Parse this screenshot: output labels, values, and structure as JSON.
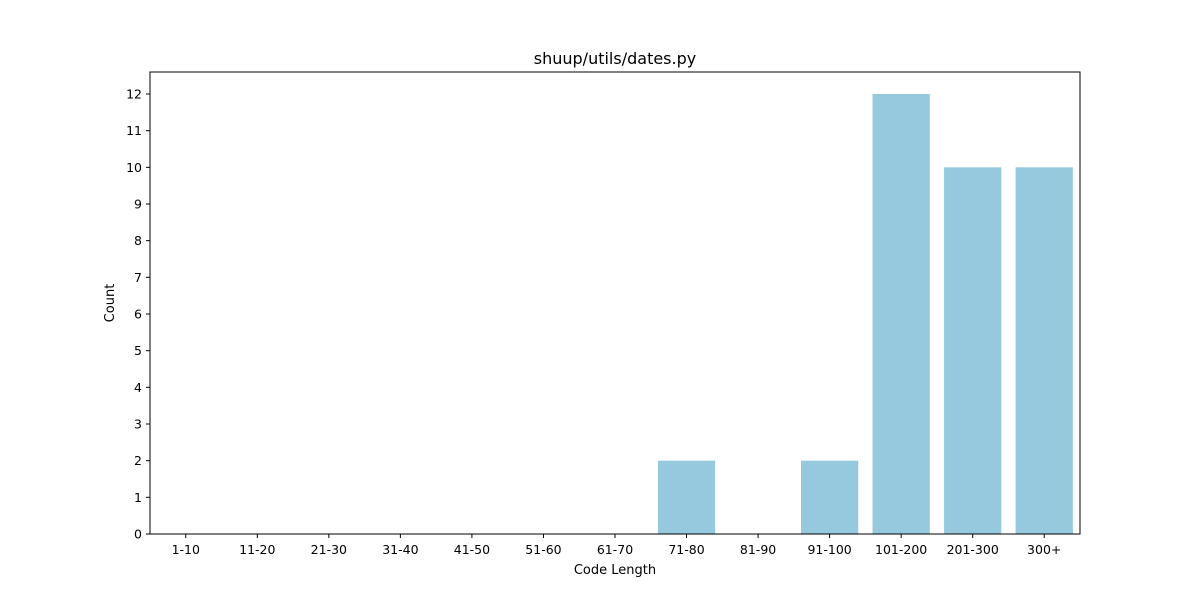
{
  "chart_data": {
    "type": "bar",
    "title": "shuup/utils/dates.py",
    "xlabel": "Code Length",
    "ylabel": "Count",
    "categories": [
      "1-10",
      "11-20",
      "21-30",
      "31-40",
      "41-50",
      "51-60",
      "61-70",
      "71-80",
      "81-90",
      "91-100",
      "101-200",
      "201-300",
      "300+"
    ],
    "values": [
      0,
      0,
      0,
      0,
      0,
      0,
      0,
      2,
      0,
      2,
      12,
      10,
      10
    ],
    "yticks": [
      0,
      1,
      2,
      3,
      4,
      5,
      6,
      7,
      8,
      9,
      10,
      11,
      12
    ],
    "ylim": [
      0,
      12.6
    ],
    "bar_color": "#96c9de",
    "grid": false,
    "legend": "none"
  }
}
